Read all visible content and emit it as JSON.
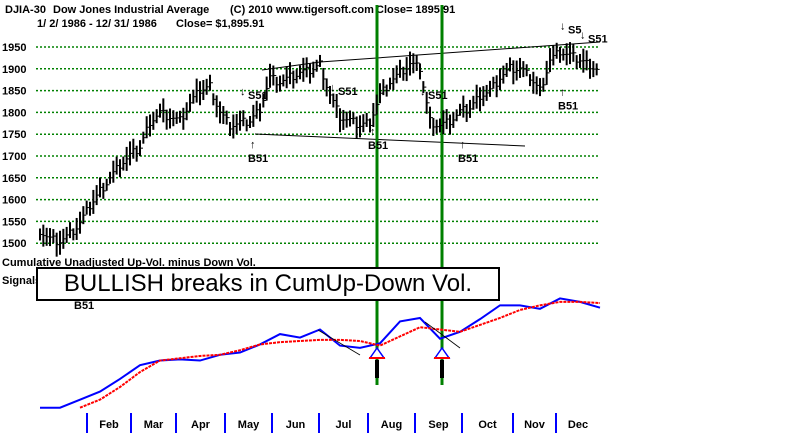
{
  "header": {
    "symbol": "DJIA-30",
    "name": "Dow Jones Industrial Average",
    "copyright": "(C) 2010 www.tigersoft.com",
    "close_top": "Close=  1895.91",
    "date_range": "1/ 2/ 1986 -  12/ 31/ 1986",
    "close_sub": "Close= $1,895.91"
  },
  "lower_panel": {
    "title": "Cumulative Unadjusted Up-Vol. minus Down Vol.",
    "signals_label": "Signals",
    "banner": "BULLISH breaks in CumUp-Down Vol."
  },
  "colors": {
    "price": "#000000",
    "grid": "#008000",
    "cum": "#0000ff",
    "ma": "#ff0000",
    "vline": "#008000",
    "month_tick": "#0000ff"
  },
  "chart_data": [
    {
      "type": "bar",
      "title": "Dow Jones Industrial Average 1986",
      "ylim": [
        1480,
        1970
      ],
      "yticks": [
        1950,
        1900,
        1850,
        1800,
        1750,
        1700,
        1650,
        1600,
        1550,
        1500
      ],
      "grid": true,
      "weekly_close": [
        1530,
        1510,
        1505,
        1520,
        1545,
        1585,
        1620,
        1650,
        1680,
        1700,
        1720,
        1780,
        1800,
        1790,
        1780,
        1820,
        1850,
        1860,
        1800,
        1770,
        1775,
        1780,
        1810,
        1880,
        1870,
        1880,
        1890,
        1895,
        1910,
        1840,
        1790,
        1780,
        1770,
        1780,
        1840,
        1870,
        1890,
        1910,
        1900,
        1780,
        1770,
        1780,
        1800,
        1810,
        1840,
        1850,
        1880,
        1900,
        1900,
        1880,
        1850,
        1920,
        1940,
        1930,
        1920,
        1910,
        1896
      ],
      "signals": [
        {
          "label": "S51",
          "dir": "down",
          "week": 21
        },
        {
          "label": "S51",
          "dir": "down",
          "week": 30
        },
        {
          "label": "S51",
          "dir": "down",
          "week": 39
        },
        {
          "label": "S5",
          "dir": "down",
          "week": 53
        },
        {
          "label": "S51",
          "dir": "down",
          "week": 55
        },
        {
          "label": "B51",
          "dir": "up",
          "week": 22
        },
        {
          "label": "B51",
          "dir": "up",
          "week": 34
        },
        {
          "label": "B51",
          "dir": "up",
          "week": 43
        },
        {
          "label": "B51",
          "dir": "up",
          "week": 53
        }
      ]
    },
    {
      "type": "line",
      "title": "Cumulative Unadjusted Up-Vol. minus Down Vol.",
      "ylim": [
        0,
        100
      ],
      "series": [
        {
          "name": "CumUp-Down Vol.",
          "values": [
            2,
            2,
            9,
            16,
            27,
            39,
            43,
            44,
            43,
            48,
            50,
            57,
            66,
            63,
            70,
            56,
            54,
            58,
            77,
            80,
            62,
            68,
            79,
            91,
            91,
            88,
            97,
            94,
            89
          ]
        },
        {
          "name": "Moving Average",
          "values": [
            null,
            null,
            2,
            9,
            20,
            33,
            43,
            45,
            47,
            48,
            52,
            57,
            59,
            60,
            61,
            61,
            60,
            56,
            64,
            72,
            70,
            68,
            74,
            80,
            87,
            91,
            94,
            94,
            93
          ]
        }
      ],
      "signals": [
        {
          "label": "B51",
          "dir": "up"
        }
      ],
      "bullish_breaks": [
        "Aug",
        "Sep"
      ]
    }
  ],
  "months": [
    "Feb",
    "Mar",
    "Apr",
    "May",
    "Jun",
    "Jul",
    "Aug",
    "Sep",
    "Oct",
    "Nov",
    "Dec"
  ]
}
